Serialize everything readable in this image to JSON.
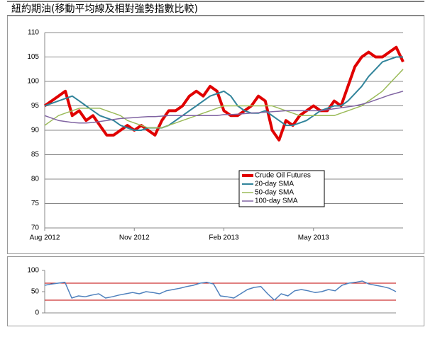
{
  "chart_data": [
    {
      "type": "line",
      "title": "紐約期油(移動平均線及相對強勢指數比較)",
      "categories": [
        "Aug 2012",
        null,
        null,
        null,
        null,
        null,
        null,
        null,
        null,
        null,
        null,
        null,
        null,
        "Nov 2012",
        null,
        null,
        null,
        null,
        null,
        null,
        null,
        null,
        null,
        null,
        null,
        null,
        "Feb 2013",
        null,
        null,
        null,
        null,
        null,
        null,
        null,
        null,
        null,
        null,
        null,
        null,
        "May 2013",
        null,
        null,
        null,
        null,
        null,
        null,
        null,
        null,
        null,
        null,
        null,
        null,
        null
      ],
      "ylim": [
        70,
        110
      ],
      "yticks": [
        70,
        75,
        80,
        85,
        90,
        95,
        100,
        105,
        110
      ],
      "grid": true,
      "legend": "center",
      "series": [
        {
          "name": "Crude Oil Futures",
          "color": "#e00000",
          "values": [
            95,
            96,
            97,
            98,
            93,
            94,
            92,
            93,
            91,
            89,
            89,
            90,
            91,
            90,
            91,
            90,
            89,
            92,
            94,
            94,
            95,
            97,
            98,
            97,
            99,
            98,
            94,
            93,
            93,
            94,
            95,
            97,
            96,
            90,
            88,
            92,
            91,
            93,
            94,
            95,
            94,
            94,
            96,
            95,
            99,
            103,
            105,
            106,
            105,
            105,
            106,
            107,
            104
          ]
        },
        {
          "name": "20-day SMA",
          "color": "#31849b",
          "values": [
            95,
            95.5,
            96,
            96.5,
            97,
            96,
            95,
            94,
            93,
            92.5,
            92,
            91,
            90.5,
            90,
            90,
            90.5,
            90.5,
            90.5,
            91,
            92,
            93,
            94,
            95,
            96,
            97,
            97.5,
            98,
            97,
            95,
            94,
            93.5,
            93.5,
            94,
            93,
            92,
            91,
            91,
            91.5,
            92,
            93,
            94,
            94.5,
            95,
            95,
            96,
            97.5,
            99,
            101,
            102.5,
            104,
            104.5,
            105,
            105
          ]
        },
        {
          "name": "50-day SMA",
          "color": "#9bbb59",
          "values": [
            91,
            92,
            93,
            93.5,
            94,
            94.5,
            94.5,
            94.5,
            94.5,
            94,
            93.5,
            93,
            92,
            91.5,
            91,
            90.5,
            90.5,
            90.5,
            91,
            91.5,
            92,
            92.5,
            93,
            93.5,
            94,
            94.5,
            95,
            95,
            95,
            95,
            95,
            95,
            95,
            95,
            94.5,
            94,
            93.5,
            93,
            93,
            93,
            93,
            93,
            93,
            93.5,
            94,
            94.5,
            95,
            96,
            97,
            98,
            99.5,
            101,
            102.5
          ]
        },
        {
          "name": "100-day SMA",
          "color": "#8064a2",
          "values": [
            93,
            92.5,
            92,
            91.8,
            91.6,
            91.5,
            91.5,
            91.6,
            91.8,
            92,
            92.2,
            92.4,
            92.5,
            92.6,
            92.7,
            92.8,
            92.8,
            92.9,
            93,
            93,
            93,
            93,
            93,
            93,
            93,
            93,
            93.2,
            93.2,
            93.3,
            93.4,
            93.5,
            93.6,
            93.7,
            93.8,
            93.9,
            94,
            94,
            94,
            94,
            94,
            94,
            94.2,
            94.4,
            94.6,
            94.8,
            95,
            95.3,
            95.7,
            96.2,
            96.7,
            97.2,
            97.6,
            98
          ]
        }
      ]
    },
    {
      "type": "line",
      "ylim": [
        0,
        100
      ],
      "yticks": [
        0,
        50,
        100
      ],
      "grid": false,
      "reference_lines": [
        70,
        30
      ],
      "reference_color": "#c00000",
      "series": [
        {
          "color": "#4f81bd",
          "values": [
            65,
            68,
            70,
            72,
            35,
            40,
            38,
            42,
            45,
            35,
            38,
            42,
            45,
            48,
            45,
            50,
            48,
            45,
            52,
            55,
            58,
            62,
            65,
            70,
            72,
            68,
            40,
            38,
            35,
            45,
            55,
            60,
            62,
            45,
            30,
            45,
            40,
            52,
            55,
            52,
            48,
            50,
            55,
            52,
            65,
            70,
            72,
            75,
            68,
            65,
            62,
            58,
            50
          ]
        }
      ]
    }
  ]
}
